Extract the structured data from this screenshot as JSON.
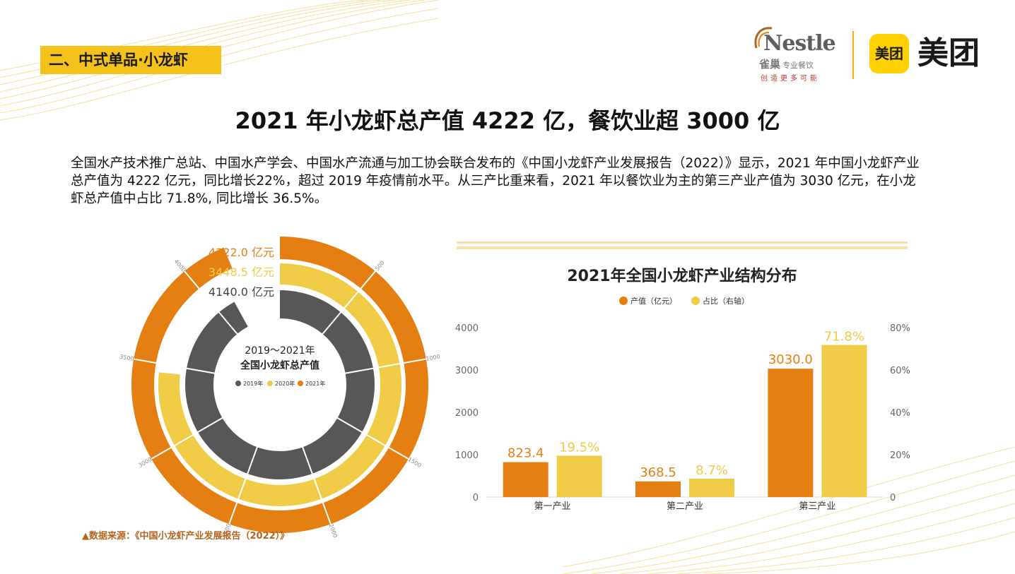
{
  "section_tag": "二、中式单品·小龙虾",
  "logos": {
    "nestle_word": "Nestle",
    "nestle_cn": "雀巢",
    "nestle_cn_sub": "专业餐饮",
    "nestle_slogan": "创造更多可能",
    "meituan_badge": "美团",
    "meituan_word": "美团"
  },
  "main_title": "2021 年小龙虾总产值 4222 亿，餐饮业超 3000 亿",
  "paragraph": "全国水产技术推广总站、中国水产学会、中国水产流通与加工协会联合发布的《中国小龙虾产业发展报告（2022）》显示，2021 年中国小龙虾产业总产值为 4222 亿元，同比增长22%，超过 2019 年疫情前水平。从三产比重来看，2021 年以餐饮业为主的第三产业产值为 3030 亿元，在小龙虾总产值中占比 71.8%, 同比增长 36.5%。",
  "source": "▲数据来源：《中国小龙虾产业发展报告（2022）》",
  "colors": {
    "accent_yellow": "#f5c21b",
    "orange": "#e67f12",
    "light_yellow": "#f0cb46",
    "dark_gray": "#575757",
    "source_brown": "#b5651d"
  },
  "chart_data": [
    {
      "type": "radial-bar",
      "title_line1": "2019～2021年",
      "title_line2": "全国小龙虾总产值",
      "series": [
        {
          "name": "2019年",
          "value": 4140.0,
          "label": "4140.0 亿元",
          "color": "#575757"
        },
        {
          "name": "2020年",
          "value": 3448.5,
          "label": "3448.5 亿元",
          "color": "#f0cb46"
        },
        {
          "name": "2021年",
          "value": 4222.0,
          "label": "4222.0 亿元",
          "color": "#e67f12"
        }
      ],
      "axis_max": 4500,
      "ticks": [
        "500",
        "1000",
        "1500",
        "2000",
        "2500",
        "3000",
        "3500",
        "4000"
      ],
      "tick_values": [
        500,
        1000,
        1500,
        2000,
        2500,
        3000,
        3500,
        4000
      ]
    },
    {
      "type": "bar",
      "title": "2021年全国小龙虾产业结构分布",
      "categories": [
        "第一产业",
        "第二产业",
        "第三产业"
      ],
      "series": [
        {
          "name": "产值（亿元）",
          "values": [
            823.4,
            368.5,
            3030.0
          ],
          "labels": [
            "823.4",
            "368.5",
            "3030.0"
          ],
          "axis": "left",
          "color": "#e67f12"
        },
        {
          "name": "占比（右轴）",
          "values": [
            19.5,
            8.7,
            71.8
          ],
          "labels": [
            "19.5%",
            "8.7%",
            "71.8%"
          ],
          "axis": "right",
          "color": "#f0cb46"
        }
      ],
      "left_ylim": [
        0,
        4000
      ],
      "left_ticks": [
        "0",
        "1000",
        "2000",
        "3000",
        "4000"
      ],
      "right_ylim": [
        0,
        80
      ],
      "right_ticks": [
        "",
        "20%",
        "40%",
        "60%",
        "80%"
      ],
      "right_tick_zero": "0"
    }
  ]
}
